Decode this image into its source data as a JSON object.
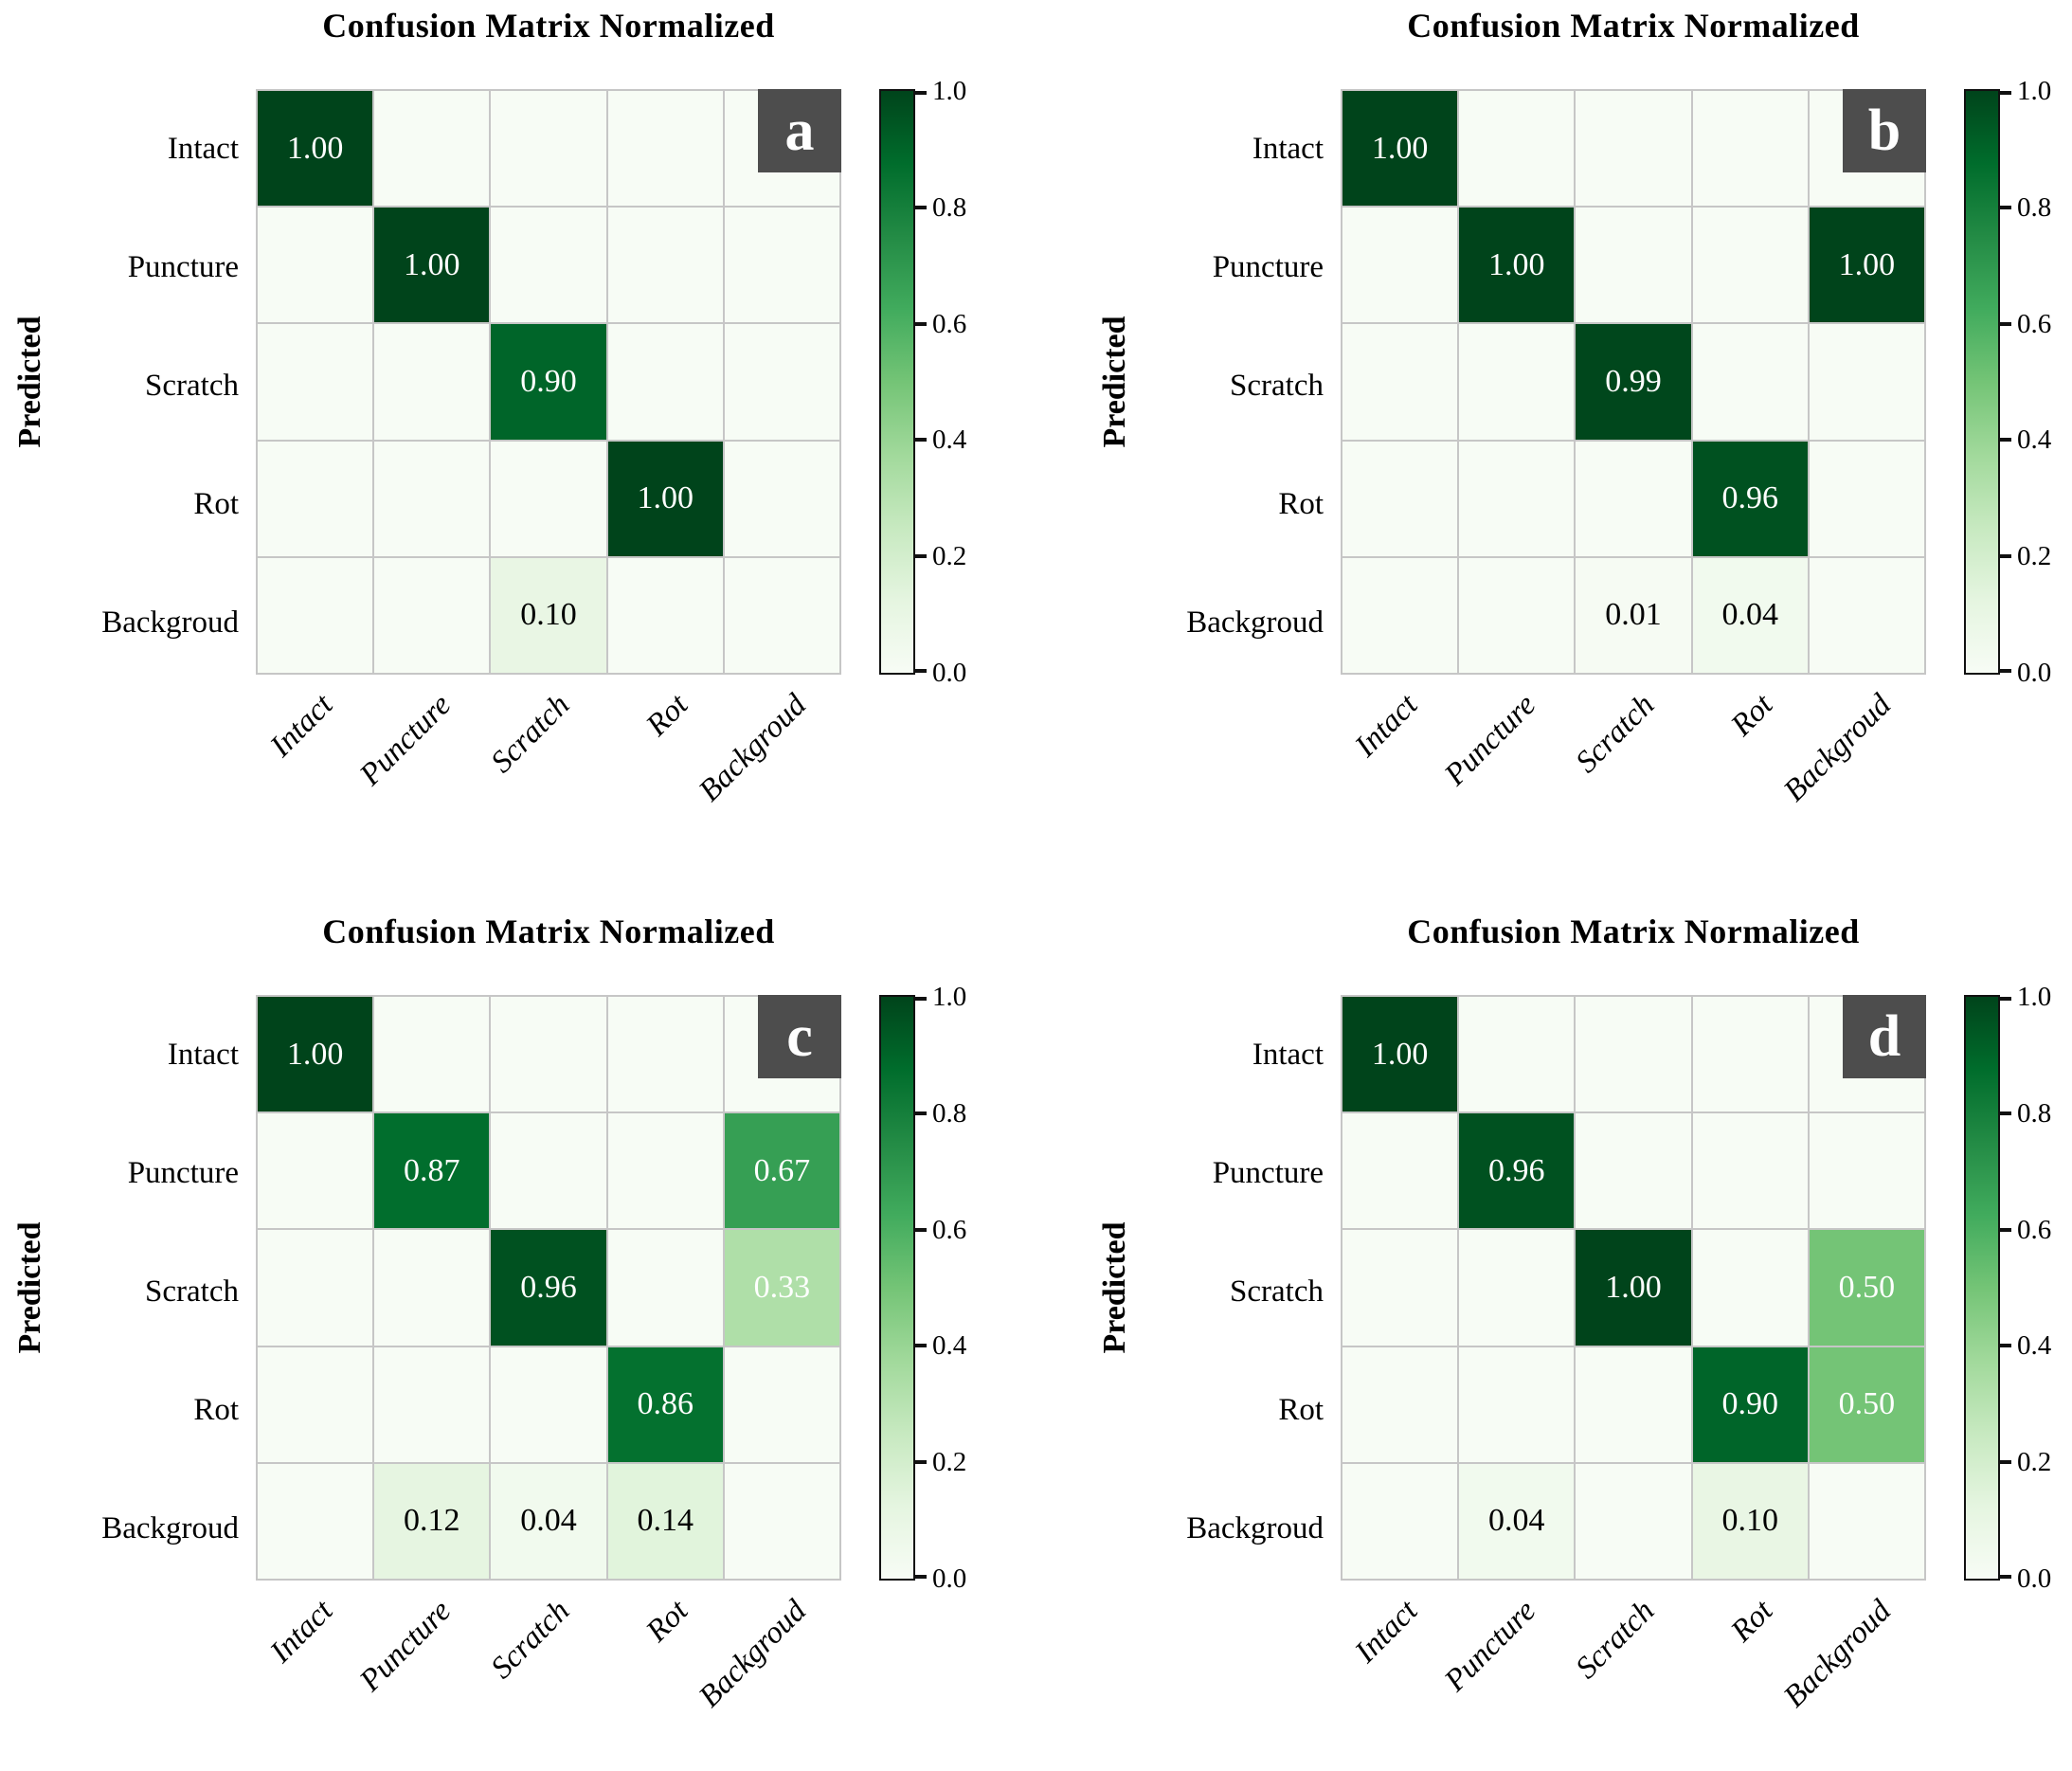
{
  "figure": {
    "background": "#ffffff",
    "description": "Four normalized confusion matrices (panels a-d) with green sequential colormap and vertical colorbars"
  },
  "colors": {
    "letter_box_bg": "#4d4d4d",
    "letter_color": "#ffffff",
    "grid_line": "#c6c6c6",
    "annotation_light": "#ffffff",
    "annotation_dark": "#000000",
    "colorbar_border": "#111111",
    "colormap_name": "Greens",
    "colormap_stops": [
      {
        "t": 0.0,
        "hex": "#f7fcf5"
      },
      {
        "t": 0.125,
        "hex": "#e5f5e0"
      },
      {
        "t": 0.25,
        "hex": "#c7e9c0"
      },
      {
        "t": 0.375,
        "hex": "#a1d99b"
      },
      {
        "t": 0.5,
        "hex": "#74c476"
      },
      {
        "t": 0.625,
        "hex": "#41ab5d"
      },
      {
        "t": 0.75,
        "hex": "#238b45"
      },
      {
        "t": 0.875,
        "hex": "#006d2c"
      },
      {
        "t": 1.0,
        "hex": "#00441b"
      }
    ]
  },
  "chart_data": [
    {
      "type": "heatmap",
      "panel_label": "a",
      "title": "Confusion Matrix Normalized",
      "ylabel": "Predicted",
      "xlabel": "",
      "categories": [
        "Intact",
        "Puncture",
        "Scratch",
        "Rot",
        "Backgroud"
      ],
      "row_labels": [
        "Intact",
        "Puncture",
        "Scratch",
        "Rot",
        "Backgroud"
      ],
      "rows": [
        [
          1.0,
          0,
          0,
          0,
          0
        ],
        [
          0,
          1.0,
          0,
          0,
          0
        ],
        [
          0,
          0,
          0.9,
          0,
          0
        ],
        [
          0,
          0,
          0,
          1.0,
          0
        ],
        [
          0,
          0,
          0.1,
          0,
          0
        ]
      ],
      "vmin": 0.0,
      "vmax": 1.0,
      "colorbar_ticks": [
        "1.0",
        "0.8",
        "0.6",
        "0.4",
        "0.2",
        "0.0"
      ],
      "legend_position": "right-colorbar",
      "grid": true
    },
    {
      "type": "heatmap",
      "panel_label": "b",
      "title": "Confusion Matrix Normalized",
      "ylabel": "Predicted",
      "xlabel": "",
      "categories": [
        "Intact",
        "Puncture",
        "Scratch",
        "Rot",
        "Backgroud"
      ],
      "row_labels": [
        "Intact",
        "Puncture",
        "Scratch",
        "Rot",
        "Backgroud"
      ],
      "rows": [
        [
          1.0,
          0,
          0,
          0,
          0
        ],
        [
          0,
          1.0,
          0,
          0,
          1.0
        ],
        [
          0,
          0,
          0.99,
          0,
          0
        ],
        [
          0,
          0,
          0,
          0.96,
          0
        ],
        [
          0,
          0,
          0.01,
          0.04,
          0
        ]
      ],
      "vmin": 0.0,
      "vmax": 1.0,
      "colorbar_ticks": [
        "1.0",
        "0.8",
        "0.6",
        "0.4",
        "0.2",
        "0.0"
      ],
      "legend_position": "right-colorbar",
      "grid": true
    },
    {
      "type": "heatmap",
      "panel_label": "c",
      "title": "Confusion Matrix Normalized",
      "ylabel": "Predicted",
      "xlabel": "",
      "categories": [
        "Intact",
        "Puncture",
        "Scratch",
        "Rot",
        "Backgroud"
      ],
      "row_labels": [
        "Intact",
        "Puncture",
        "Scratch",
        "Rot",
        "Backgroud"
      ],
      "rows": [
        [
          1.0,
          0,
          0,
          0,
          0
        ],
        [
          0,
          0.87,
          0,
          0,
          0.67
        ],
        [
          0,
          0,
          0.96,
          0,
          0.33
        ],
        [
          0,
          0,
          0,
          0.86,
          0
        ],
        [
          0,
          0.12,
          0.04,
          0.14,
          0
        ]
      ],
      "vmin": 0.0,
      "vmax": 1.0,
      "colorbar_ticks": [
        "1.0",
        "0.8",
        "0.6",
        "0.4",
        "0.2",
        "0.0"
      ],
      "legend_position": "right-colorbar",
      "grid": true
    },
    {
      "type": "heatmap",
      "panel_label": "d",
      "title": "Confusion Matrix Normalized",
      "ylabel": "Predicted",
      "xlabel": "",
      "categories": [
        "Intact",
        "Puncture",
        "Scratch",
        "Rot",
        "Backgroud"
      ],
      "row_labels": [
        "Intact",
        "Puncture",
        "Scratch",
        "Rot",
        "Backgroud"
      ],
      "rows": [
        [
          1.0,
          0,
          0,
          0,
          0
        ],
        [
          0,
          0.96,
          0,
          0,
          0
        ],
        [
          0,
          0,
          1.0,
          0,
          0.5
        ],
        [
          0,
          0,
          0,
          0.9,
          0.5
        ],
        [
          0,
          0.04,
          0,
          0.1,
          0
        ]
      ],
      "vmin": 0.0,
      "vmax": 1.0,
      "colorbar_ticks": [
        "1.0",
        "0.8",
        "0.6",
        "0.4",
        "0.2",
        "0.0"
      ],
      "legend_position": "right-colorbar",
      "grid": true
    }
  ]
}
